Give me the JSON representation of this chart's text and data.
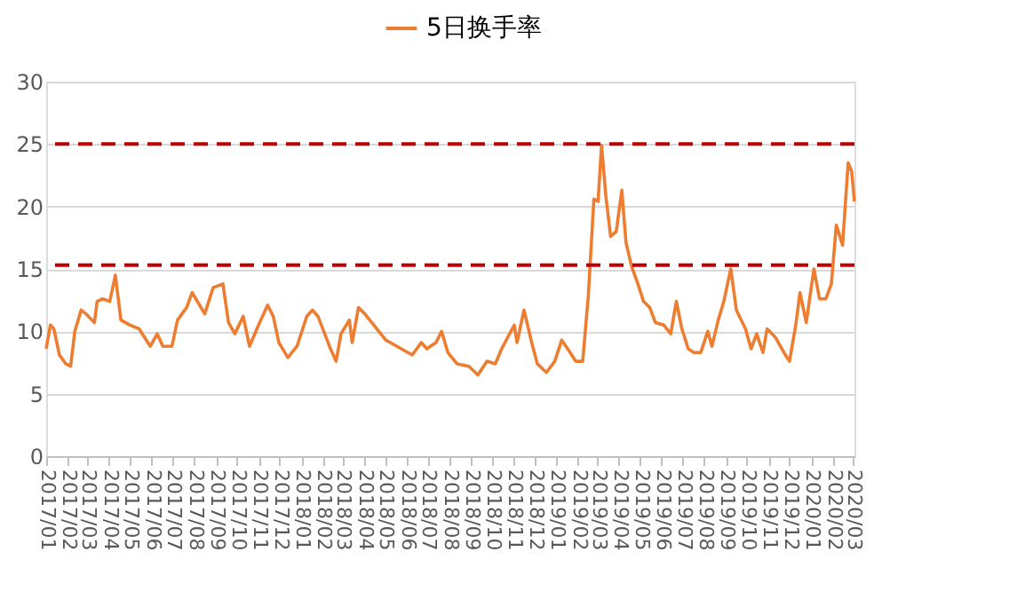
{
  "chart_data": {
    "type": "line",
    "legend": "top",
    "grid": "y",
    "marker": "none",
    "line_style": "solid",
    "ylim": [
      0,
      30
    ],
    "yticks": [
      0,
      5,
      10,
      15,
      20,
      25,
      30
    ],
    "xlim": [
      "2017-01-01",
      "2020-03-03"
    ],
    "xticks": [
      {
        "value": "2017-01",
        "label": "2017/01"
      },
      {
        "value": "2017-02",
        "label": "2017/02"
      },
      {
        "value": "2017-03",
        "label": "2017/03"
      },
      {
        "value": "2017-04",
        "label": "2017/04"
      },
      {
        "value": "2017-05",
        "label": "2017/05"
      },
      {
        "value": "2017-06",
        "label": "2017/06"
      },
      {
        "value": "2017-07",
        "label": "2017/07"
      },
      {
        "value": "2017-08",
        "label": "2017/08"
      },
      {
        "value": "2017-09",
        "label": "2017/09"
      },
      {
        "value": "2017-10",
        "label": "2017/10"
      },
      {
        "value": "2017-11",
        "label": "2017/11"
      },
      {
        "value": "2017-12",
        "label": "2017/12"
      },
      {
        "value": "2018-01",
        "label": "2018/01"
      },
      {
        "value": "2018-02",
        "label": "2018/02"
      },
      {
        "value": "2018-03",
        "label": "2018/03"
      },
      {
        "value": "2018-04",
        "label": "2018/04"
      },
      {
        "value": "2018-05",
        "label": "2018/05"
      },
      {
        "value": "2018-06",
        "label": "2018/06"
      },
      {
        "value": "2018-07",
        "label": "2018/07"
      },
      {
        "value": "2018-08",
        "label": "2018/08"
      },
      {
        "value": "2018-09",
        "label": "2018/09"
      },
      {
        "value": "2018-10",
        "label": "2018/10"
      },
      {
        "value": "2018-11",
        "label": "2018/11"
      },
      {
        "value": "2018-12",
        "label": "2018/12"
      },
      {
        "value": "2019-01",
        "label": "2019/01"
      },
      {
        "value": "2019-02",
        "label": "2019/02"
      },
      {
        "value": "2019-03",
        "label": "2019/03"
      },
      {
        "value": "2019-04",
        "label": "2019/04"
      },
      {
        "value": "2019-05",
        "label": "2019/05"
      },
      {
        "value": "2019-06",
        "label": "2019/06"
      },
      {
        "value": "2019-07",
        "label": "2019/07"
      },
      {
        "value": "2019-08",
        "label": "2019/08"
      },
      {
        "value": "2019-09",
        "label": "2019/09"
      },
      {
        "value": "2019-10",
        "label": "2019/10"
      },
      {
        "value": "2019-11",
        "label": "2019/11"
      },
      {
        "value": "2019-12",
        "label": "2019/12"
      },
      {
        "value": "2020-01",
        "label": "2020/01"
      },
      {
        "value": "2020-02",
        "label": "2020/02"
      },
      {
        "value": "2020-03",
        "label": "2020/03"
      }
    ],
    "ref_lines": [
      {
        "axis": "y",
        "value": 25,
        "color": "#c00000",
        "line_style": "dashed"
      },
      {
        "axis": "y",
        "value": 15.3,
        "color": "#c00000",
        "line_style": "dashed"
      }
    ],
    "series": [
      {
        "name": "5日换手率",
        "color": "#ed7d31",
        "x": [
          "2017-01-01",
          "2017-01-07",
          "2017-01-12",
          "2017-01-20",
          "2017-01-29",
          "2017-02-05",
          "2017-02-11",
          "2017-02-20",
          "2017-02-27",
          "2017-03-11",
          "2017-03-15",
          "2017-03-23",
          "2017-04-02",
          "2017-04-10",
          "2017-04-18",
          "2017-05-01",
          "2017-05-14",
          "2017-05-30",
          "2017-06-09",
          "2017-06-17",
          "2017-06-30",
          "2017-07-08",
          "2017-07-21",
          "2017-07-29",
          "2017-08-16",
          "2017-08-28",
          "2017-09-11",
          "2017-09-19",
          "2017-09-28",
          "2017-10-10",
          "2017-10-19",
          "2017-11-01",
          "2017-11-14",
          "2017-11-22",
          "2017-11-30",
          "2017-12-13",
          "2017-12-26",
          "2018-01-09",
          "2018-01-17",
          "2018-01-25",
          "2018-02-12",
          "2018-02-20",
          "2018-02-27",
          "2018-03-11",
          "2018-03-15",
          "2018-03-24",
          "2018-04-02",
          "2018-04-15",
          "2018-05-02",
          "2018-05-18",
          "2018-06-09",
          "2018-06-22",
          "2018-06-30",
          "2018-07-13",
          "2018-07-21",
          "2018-07-30",
          "2018-08-12",
          "2018-08-29",
          "2018-09-11",
          "2018-09-24",
          "2018-10-06",
          "2018-10-15",
          "2018-11-02",
          "2018-11-06",
          "2018-11-16",
          "2018-11-27",
          "2018-12-05",
          "2018-12-18",
          "2018-12-30",
          "2019-01-09",
          "2019-01-21",
          "2019-01-29",
          "2019-02-08",
          "2019-02-16",
          "2019-02-24",
          "2019-03-02",
          "2019-03-07",
          "2019-03-13",
          "2019-03-20",
          "2019-03-28",
          "2019-04-05",
          "2019-04-11",
          "2019-04-19",
          "2019-04-28",
          "2019-05-06",
          "2019-05-15",
          "2019-05-23",
          "2019-06-04",
          "2019-06-14",
          "2019-06-22",
          "2019-06-30",
          "2019-07-09",
          "2019-07-17",
          "2019-07-27",
          "2019-08-06",
          "2019-08-12",
          "2019-08-21",
          "2019-08-29",
          "2019-09-08",
          "2019-09-16",
          "2019-09-29",
          "2019-10-07",
          "2019-10-15",
          "2019-10-24",
          "2019-10-30",
          "2019-11-11",
          "2019-11-23",
          "2019-12-01",
          "2019-12-10",
          "2019-12-16",
          "2019-12-25",
          "2020-01-05",
          "2020-01-13",
          "2020-01-22",
          "2020-01-30",
          "2020-02-06",
          "2020-02-15",
          "2020-02-23",
          "2020-02-28",
          "2020-03-03"
        ],
        "values": [
          8.6,
          10.5,
          10.2,
          8.1,
          7.4,
          7.2,
          10,
          11.7,
          11.4,
          10.7,
          12.4,
          12.6,
          12.4,
          14.5,
          10.9,
          10.5,
          10.2,
          8.8,
          9.8,
          8.8,
          8.8,
          10.9,
          11.9,
          13.1,
          11.4,
          13.5,
          13.8,
          10.7,
          9.8,
          11.2,
          8.8,
          10.5,
          12.1,
          11.2,
          9.1,
          7.9,
          8.8,
          11.2,
          11.7,
          11.2,
          8.6,
          7.6,
          9.8,
          10.9,
          9.1,
          11.9,
          11.4,
          10.5,
          9.3,
          8.8,
          8.1,
          9.1,
          8.6,
          9.1,
          10,
          8.3,
          7.4,
          7.2,
          6.5,
          7.6,
          7.4,
          8.6,
          10.5,
          9.1,
          11.7,
          9.1,
          7.4,
          6.7,
          7.6,
          9.3,
          8.3,
          7.6,
          7.6,
          12.8,
          20.6,
          20.4,
          24.9,
          20.9,
          17.6,
          18,
          21.3,
          17.1,
          15.2,
          13.8,
          12.4,
          11.9,
          10.7,
          10.5,
          9.8,
          12.4,
          10.2,
          8.6,
          8.3,
          8.3,
          10,
          8.8,
          10.9,
          12.4,
          15,
          11.7,
          10.2,
          8.6,
          9.8,
          8.3,
          10.2,
          9.5,
          8.3,
          7.6,
          10.5,
          13.1,
          10.7,
          15,
          12.6,
          12.6,
          13.8,
          18.5,
          16.9,
          23.5,
          22.8,
          20.4
        ]
      }
    ]
  }
}
